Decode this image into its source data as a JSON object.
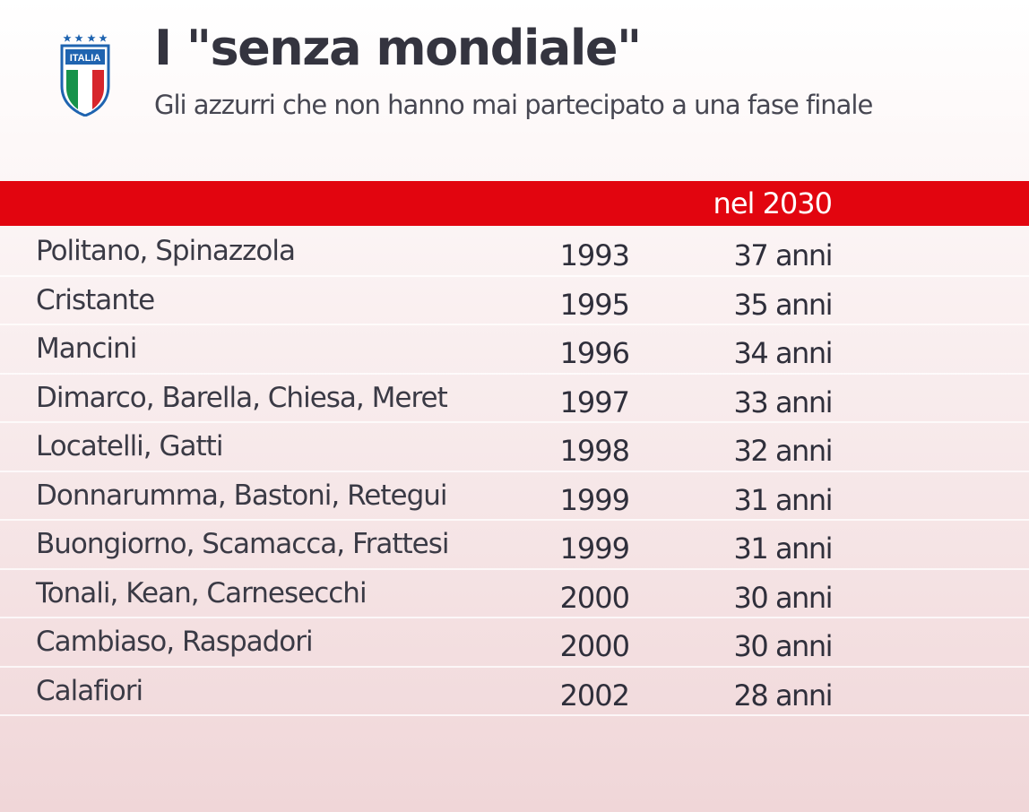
{
  "header": {
    "crest_text": "ITALIA",
    "title": "I \"senza mondiale\"",
    "subtitle": "Gli azzurri che non hanno mai partecipato a una fase finale"
  },
  "table": {
    "age_column_header": "nel 2030",
    "rows": [
      {
        "names": "Politano, Spinazzola",
        "year": "1993",
        "age": "37 anni"
      },
      {
        "names": "Cristante",
        "year": "1995",
        "age": "35 anni"
      },
      {
        "names": "Mancini",
        "year": "1996",
        "age": "34 anni"
      },
      {
        "names": "Dimarco, Barella, Chiesa, Meret",
        "year": "1997",
        "age": "33 anni"
      },
      {
        "names": "Locatelli, Gatti",
        "year": "1998",
        "age": "32 anni"
      },
      {
        "names": "Donnarumma, Bastoni, Retegui",
        "year": "1999",
        "age": "31 anni"
      },
      {
        "names": "Buongiorno, Scamacca, Frattesi",
        "year": "1999",
        "age": "31 anni"
      },
      {
        "names": "Tonali, Kean, Carnesecchi",
        "year": "2000",
        "age": "30 anni"
      },
      {
        "names": "Cambiaso, Raspadori",
        "year": "2000",
        "age": "30 anni"
      },
      {
        "names": "Calafiori",
        "year": "2002",
        "age": "28 anni"
      }
    ]
  },
  "colors": {
    "header_bar": "#e2050f",
    "crest_blue": "#1f64b0",
    "flag_green": "#17924a",
    "flag_red": "#d7262c"
  }
}
